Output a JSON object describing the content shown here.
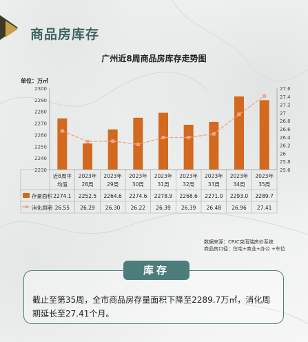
{
  "header": {
    "title": "商品房库存"
  },
  "chart_data": {
    "type": "bar+line",
    "title": "广州近8周商品房库存走势图",
    "unit_label": "单位：万㎡",
    "categories": [
      [
        "近8周平",
        "均值"
      ],
      [
        "2023年",
        "28周"
      ],
      [
        "2023年",
        "29周"
      ],
      [
        "2023年",
        "30周"
      ],
      [
        "2023年",
        "31周"
      ],
      [
        "2023年",
        "32周"
      ],
      [
        "2023年",
        "33周"
      ],
      [
        "2023年",
        "34周"
      ],
      [
        "2023年",
        "35周"
      ]
    ],
    "y_left": {
      "min": 2230,
      "max": 2300,
      "ticks": [
        "2230",
        "2240",
        "2250",
        "2260",
        "2270",
        "2280",
        "2290",
        "2300"
      ]
    },
    "y_right": {
      "min": 25.6,
      "max": 27.6,
      "ticks": [
        "25.6",
        "25.8",
        "26",
        "26.2",
        "26.4",
        "26.6",
        "26.8",
        "27",
        "27.2",
        "27.4",
        "27.6"
      ]
    },
    "series": [
      {
        "name": "存量面积",
        "type": "bar",
        "color": "#d2691e",
        "values": [
          2274.1,
          2252.5,
          2264.6,
          2274.6,
          2278.9,
          2268.6,
          2271.0,
          2293.0,
          2289.7
        ],
        "labels": [
          "2274.1",
          "2252.5",
          "2264.6",
          "2274.6",
          "2278.9",
          "2268.6",
          "2271.0",
          "2293.0",
          "2289.7"
        ]
      },
      {
        "name": "消化周期",
        "type": "line",
        "color": "#f0a58a",
        "values": [
          26.55,
          26.29,
          26.3,
          26.22,
          26.39,
          26.39,
          26.48,
          26.96,
          27.41
        ],
        "labels": [
          "26.55",
          "26.29",
          "26.30",
          "26.22",
          "26.39",
          "26.39",
          "26.48",
          "26.96",
          "27.41"
        ]
      }
    ]
  },
  "source": {
    "line1": "数据来源：CRIC克而瑞房价系统",
    "line2": "商品房口径：住宅+商业+办公  +车位"
  },
  "summary": {
    "tag": "库存",
    "text": "截止至第35周，全市商品房存量面积下降至2289.7万㎡，消化周期延长至27.41个月。"
  }
}
